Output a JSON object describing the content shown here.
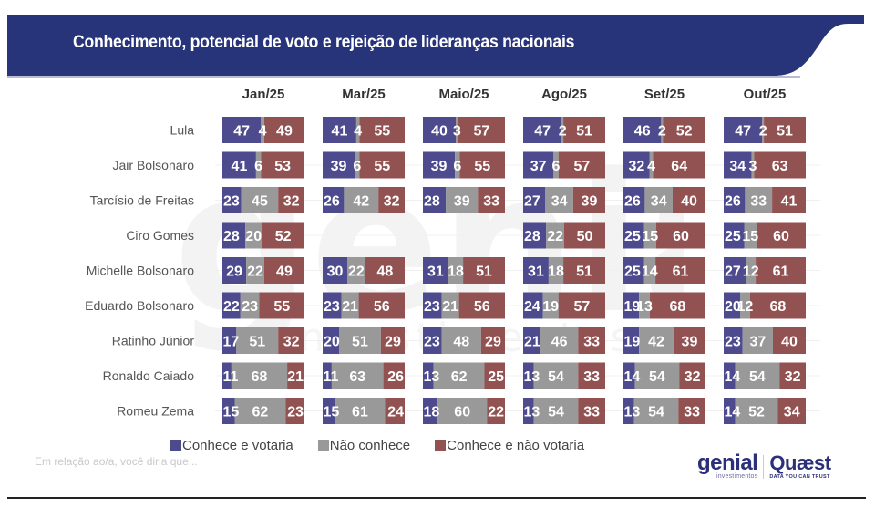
{
  "header": {
    "title": "Conhecimento, potencial de voto e rejeição de lideranças nacionais",
    "banner_color": "#283479"
  },
  "colors": {
    "conhece_votaria": "#4e4a8e",
    "nao_conhece": "#999999",
    "conhece_nao_votaria": "#925252",
    "label_text": "#ffffff"
  },
  "chart_data": {
    "type": "bar",
    "orientation": "horizontal-stacked-100",
    "title": "Conhecimento, potencial de voto e rejeição de lideranças nacionais",
    "periods": [
      "Jan/25",
      "Mar/25",
      "Maio/25",
      "Ago/25",
      "Set/25",
      "Out/25"
    ],
    "categories": [
      "Lula",
      "Jair Bolsonaro",
      "Tarcísio de Freitas",
      "Ciro Gomes",
      "Michelle Bolsonaro",
      "Eduardo Bolsonaro",
      "Ratinho Júnior",
      "Ronaldo Caiado",
      "Romeu Zema"
    ],
    "series_names": [
      "Conhece e votaria",
      "Não conhece",
      "Conhece e não votaria"
    ],
    "values": [
      [
        [
          47,
          4,
          49
        ],
        [
          41,
          4,
          55
        ],
        [
          40,
          3,
          57
        ],
        [
          47,
          2,
          51
        ],
        [
          46,
          2,
          52
        ],
        [
          47,
          2,
          51
        ]
      ],
      [
        [
          41,
          6,
          53
        ],
        [
          39,
          6,
          55
        ],
        [
          39,
          6,
          55
        ],
        [
          37,
          6,
          57
        ],
        [
          32,
          4,
          64
        ],
        [
          34,
          3,
          63
        ]
      ],
      [
        [
          23,
          45,
          32
        ],
        [
          26,
          42,
          32
        ],
        [
          28,
          39,
          33
        ],
        [
          27,
          34,
          39
        ],
        [
          26,
          34,
          40
        ],
        [
          26,
          33,
          41
        ]
      ],
      [
        [
          28,
          20,
          52
        ],
        null,
        null,
        [
          28,
          22,
          50
        ],
        [
          25,
          15,
          60
        ],
        [
          25,
          15,
          60
        ]
      ],
      [
        [
          29,
          22,
          49
        ],
        [
          30,
          22,
          48
        ],
        [
          31,
          18,
          51
        ],
        [
          31,
          18,
          51
        ],
        [
          25,
          14,
          61
        ],
        [
          27,
          12,
          61
        ]
      ],
      [
        [
          22,
          23,
          55
        ],
        [
          23,
          21,
          56
        ],
        [
          23,
          21,
          56
        ],
        [
          24,
          19,
          57
        ],
        [
          19,
          13,
          68
        ],
        [
          20,
          12,
          68
        ]
      ],
      [
        [
          17,
          51,
          32
        ],
        [
          20,
          51,
          29
        ],
        [
          23,
          48,
          29
        ],
        [
          21,
          46,
          33
        ],
        [
          19,
          42,
          39
        ],
        [
          23,
          37,
          40
        ]
      ],
      [
        [
          11,
          68,
          21
        ],
        [
          11,
          63,
          26
        ],
        [
          13,
          62,
          25
        ],
        [
          13,
          54,
          33
        ],
        [
          14,
          54,
          32
        ],
        [
          14,
          54,
          32
        ]
      ],
      [
        [
          15,
          62,
          23
        ],
        [
          15,
          61,
          24
        ],
        [
          18,
          60,
          22
        ],
        [
          13,
          54,
          33
        ],
        [
          13,
          54,
          33
        ],
        [
          14,
          52,
          34
        ]
      ]
    ],
    "xlim": [
      0,
      100
    ],
    "unit": "%",
    "legend_position": "bottom",
    "grid": false
  },
  "legend": [
    {
      "label": "Conhece e votaria",
      "color": "#4e4a8e"
    },
    {
      "label": "Não conhece",
      "color": "#999999"
    },
    {
      "label": "Conhece e não votaria",
      "color": "#925252"
    }
  ],
  "footer": {
    "note": "Em relação ao/a, você diria que...",
    "logo_genial": "genial",
    "logo_genial_sub": "investimentos",
    "logo_quaest": "Quæst",
    "logo_quaest_sub": "DATA YOU CAN TRUST"
  },
  "watermark": {
    "text": "genial",
    "sub": "investimentos"
  }
}
